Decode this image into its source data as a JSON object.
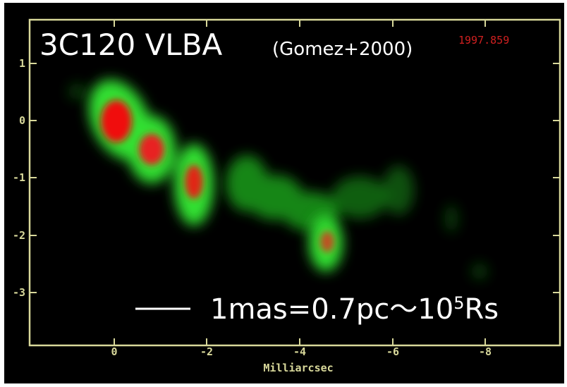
{
  "image": {
    "title": "3C120 VLBA",
    "reference": "(Gomez+2000)",
    "epoch": "1997.859",
    "y_tick_labels": [
      "1",
      "0",
      "-1",
      "-2",
      "-3"
    ],
    "x_tick_labels": [
      "0",
      "-2",
      "-4",
      "-6",
      "-8"
    ],
    "x_axis_label": "Milliarcsec",
    "scale_text": "1mas=0.7pc～10",
    "scale_superscript": "5",
    "scale_unit": "Rs"
  }
}
